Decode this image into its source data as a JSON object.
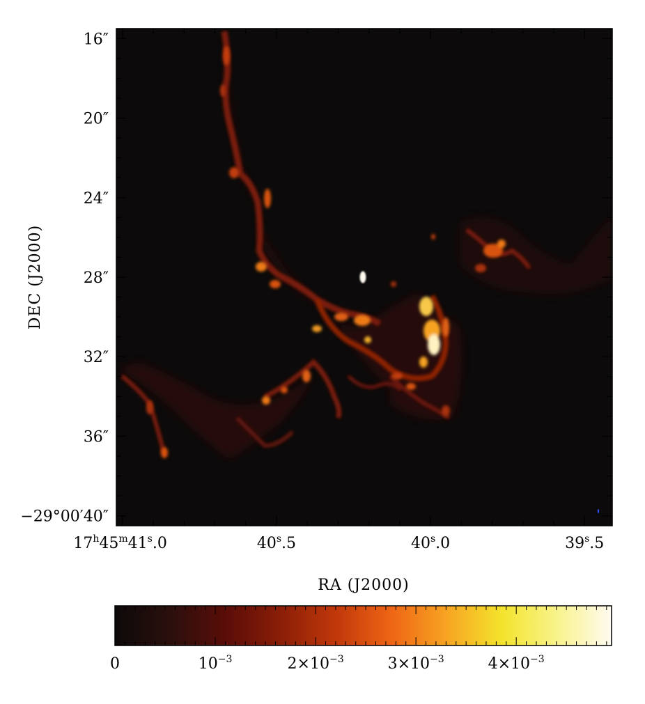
{
  "figure": {
    "image": {
      "description_free": true,
      "x_axis": {
        "label": "RA (J2000)",
        "ticks": [
          {
            "value_s": 41.0,
            "h": "17",
            "m": "45",
            "s_int": "41",
            "s_frac": "0",
            "full": true
          },
          {
            "value_s": 40.5,
            "s_int": "40",
            "s_frac": "5",
            "full": false
          },
          {
            "value_s": 40.0,
            "s_int": "40",
            "s_frac": "0",
            "full": false
          },
          {
            "value_s": 39.5,
            "s_int": "39",
            "s_frac": "5",
            "full": false
          }
        ],
        "range_s": [
          41.02,
          39.41
        ],
        "sup_h": "h",
        "sup_m": "m",
        "sup_s": "s"
      },
      "y_axis": {
        "label": "DEC (J2000)",
        "ticks": [
          {
            "value_arcsec": 16,
            "text": "16″"
          },
          {
            "value_arcsec": 20,
            "text": "20″"
          },
          {
            "value_arcsec": 24,
            "text": "24″"
          },
          {
            "value_arcsec": 28,
            "text": "28″"
          },
          {
            "value_arcsec": 32,
            "text": "32″"
          },
          {
            "value_arcsec": 36,
            "text": "36″"
          },
          {
            "value_arcsec": 40,
            "text": "−29°00′40″"
          }
        ],
        "range_arcsec": [
          15.5,
          40.5
        ]
      }
    },
    "colorbar": {
      "range": [
        0,
        0.00495
      ],
      "ticks": [
        {
          "value": 0,
          "text": "0"
        },
        {
          "value": 0.001,
          "mant": "",
          "text": "10",
          "exp": "−3"
        },
        {
          "value": 0.002,
          "mant": "2×",
          "text": "10",
          "exp": "−3"
        },
        {
          "value": 0.003,
          "mant": "3×",
          "text": "10",
          "exp": "−3"
        },
        {
          "value": 0.004,
          "mant": "4×",
          "text": "10",
          "exp": "−3"
        }
      ],
      "colors": [
        "#0d0a0a",
        "#2a0f0c",
        "#5a0d08",
        "#8a1e07",
        "#c0380a",
        "#ee6515",
        "#f7a322",
        "#f4e32c",
        "#f8f38a",
        "#fffaf0"
      ]
    }
  }
}
